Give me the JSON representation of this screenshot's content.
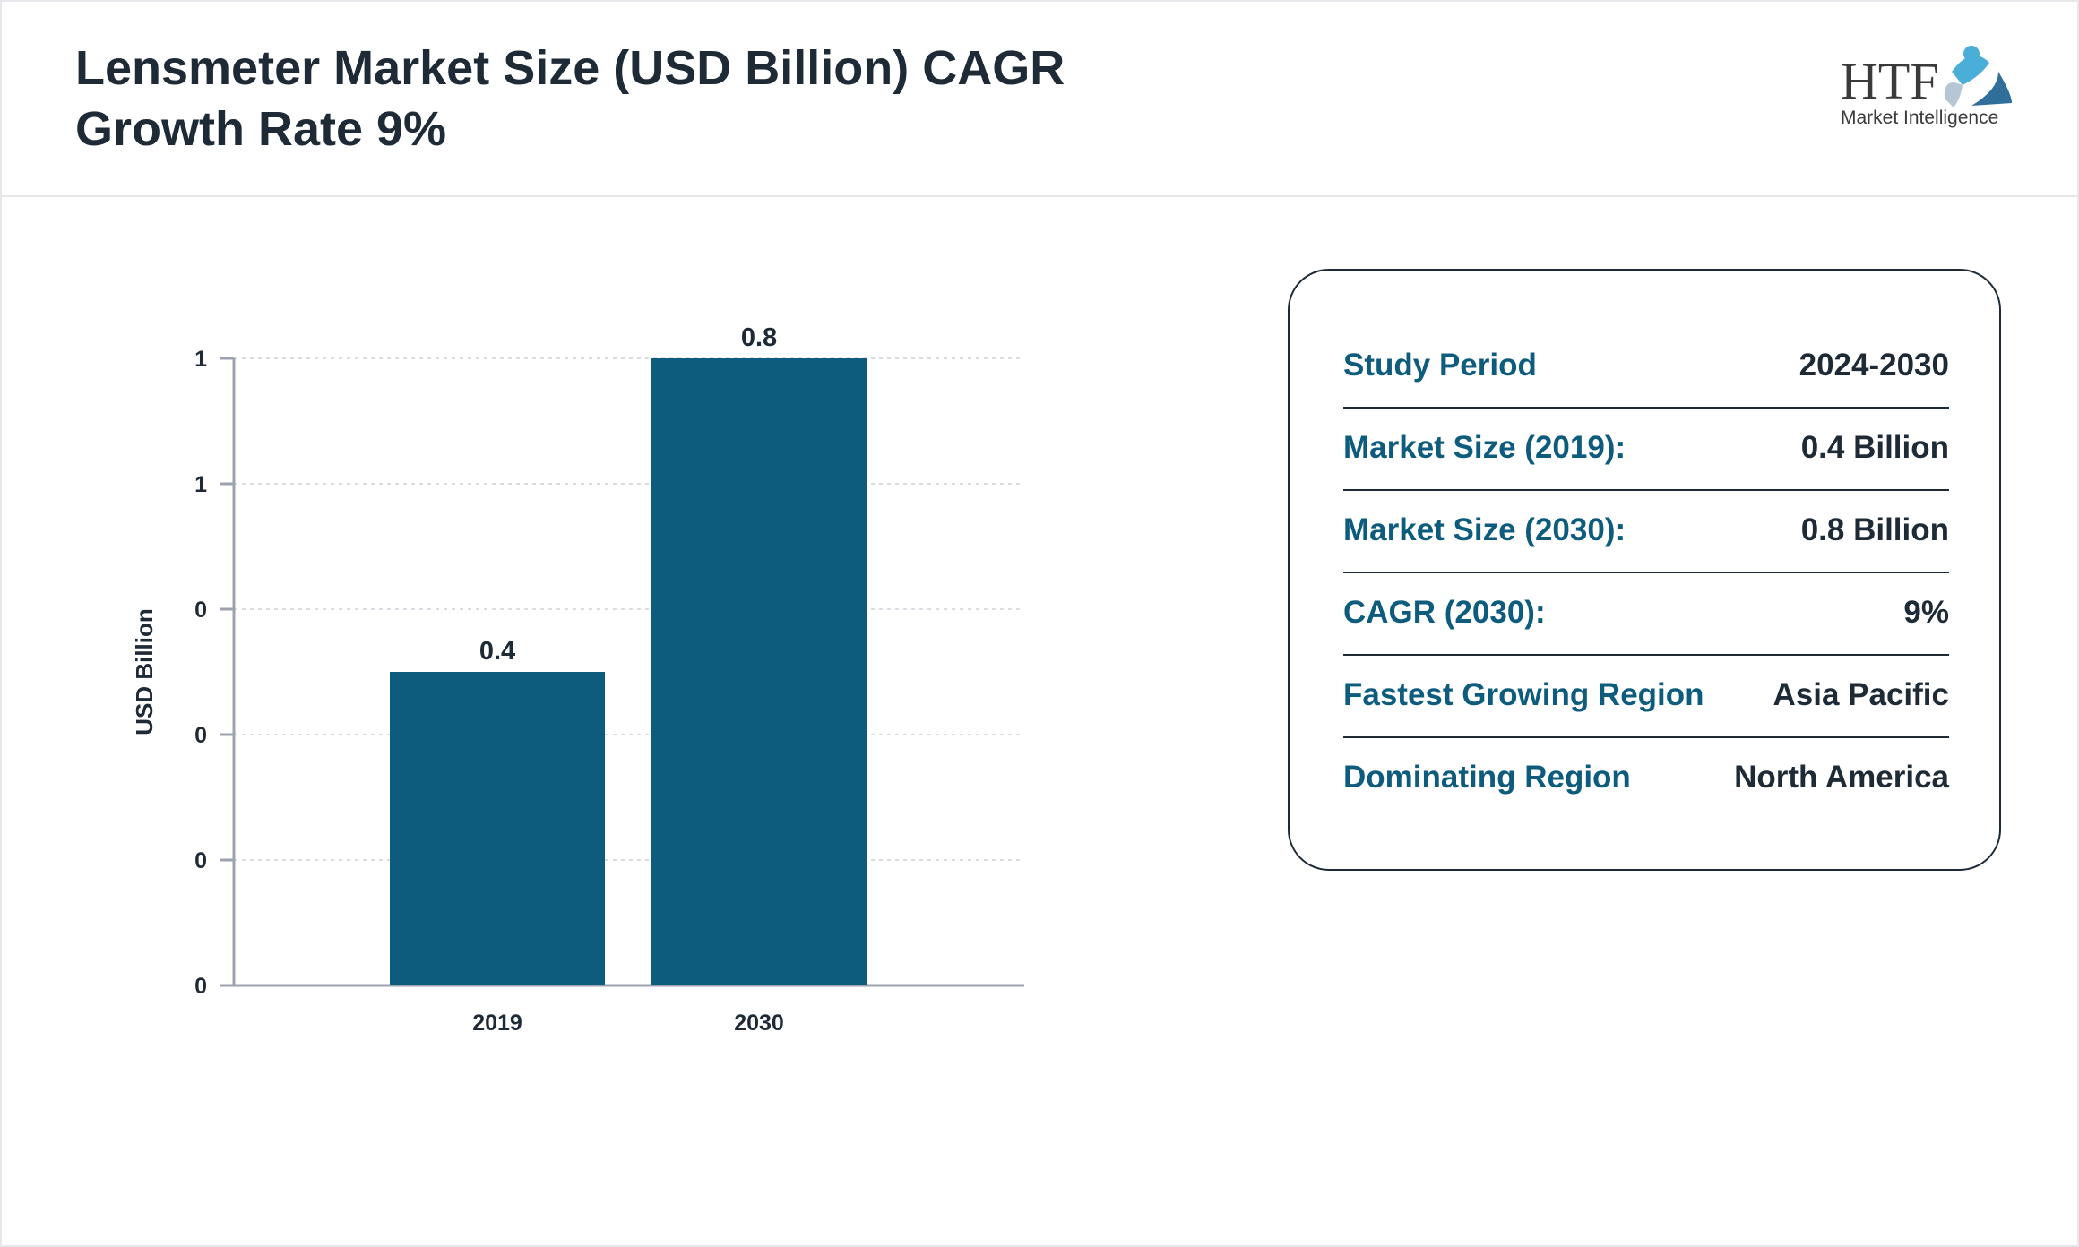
{
  "header": {
    "title": "Lensmeter Market Size (USD Billion) CAGR Growth Rate 9%",
    "logo_text": "HTF Market Intelligence"
  },
  "chart_data": {
    "type": "bar",
    "categories": [
      "2019",
      "2030"
    ],
    "values": [
      0.4,
      0.8
    ],
    "data_labels": [
      "0.4",
      "0.8"
    ],
    "ylabel": "USD Billion",
    "ylim": [
      0,
      0.8
    ],
    "y_ticks": [
      0,
      0.16,
      0.32,
      0.48,
      0.64,
      0.8
    ],
    "y_tick_labels": [
      "0",
      "0",
      "0",
      "0",
      "1",
      "1"
    ],
    "grid": true,
    "bar_color": "#0d5c7e"
  },
  "info": {
    "rows": [
      {
        "label": "Study Period",
        "value": "2024-2030"
      },
      {
        "label": "Market Size (2019):",
        "value": "0.4 Billion"
      },
      {
        "label": "Market Size (2030):",
        "value": "0.8 Billion"
      },
      {
        "label": "CAGR (2030):",
        "value": "9%"
      },
      {
        "label": "Fastest Growing Region",
        "value": "Asia Pacific"
      },
      {
        "label": "Dominating Region",
        "value": "North America"
      }
    ]
  }
}
